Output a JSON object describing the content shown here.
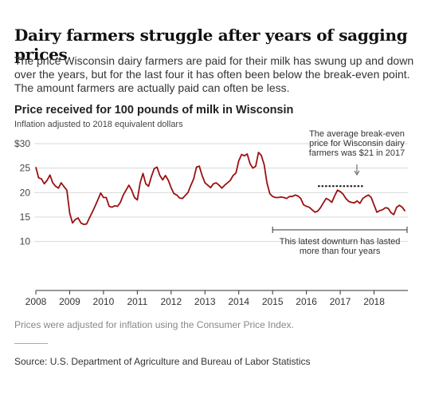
{
  "headline": "Dairy farmers struggle after years of sagging prices",
  "dek": "The price Wisconsin dairy farmers are paid for their milk has swung up and down over the years, but for the last four it has often been below the break-even point. The amount farmers are actually paid can often be less.",
  "note": "Prices were adjusted for inflation using the Consumer Price Index.",
  "source": "Source: U.S. Department of Agriculture and Bureau of Labor Statistics",
  "colors": {
    "line": "#9b1111",
    "grid": "#d8d8d8",
    "axis": "#333333",
    "annotation": "#333333"
  },
  "chart_data": {
    "type": "line",
    "title": "Price received for 100 pounds of milk in Wisconsin",
    "subtitle": "Inflation adjusted to 2018 equivalent dollars",
    "xlabel": "",
    "ylabel": "",
    "xlim": [
      2008,
      2019
    ],
    "ylim": [
      0,
      30
    ],
    "y_ticks": [
      0,
      10,
      15,
      20,
      25,
      30
    ],
    "y_tick_labels": [
      "",
      "10",
      "15",
      "20",
      "25",
      "$30"
    ],
    "x_ticks": [
      2008,
      2009,
      2010,
      2011,
      2012,
      2013,
      2014,
      2015,
      2016,
      2017,
      2018
    ],
    "x_tick_labels": [
      "2008",
      "2009",
      "2010",
      "2011",
      "2012",
      "2013",
      "2014",
      "2015",
      "2016",
      "2017",
      "2018"
    ],
    "grid": true,
    "series": [
      {
        "color": "#9b1111",
        "x": [
          2008.0,
          2008.083,
          2008.167,
          2008.25,
          2008.333,
          2008.417,
          2008.5,
          2008.583,
          2008.667,
          2008.75,
          2008.833,
          2008.917,
          2009.0,
          2009.083,
          2009.167,
          2009.25,
          2009.333,
          2009.417,
          2009.5,
          2009.583,
          2009.667,
          2009.75,
          2009.833,
          2009.917,
          2010.0,
          2010.083,
          2010.167,
          2010.25,
          2010.333,
          2010.417,
          2010.5,
          2010.583,
          2010.667,
          2010.75,
          2010.833,
          2010.917,
          2011.0,
          2011.083,
          2011.167,
          2011.25,
          2011.333,
          2011.417,
          2011.5,
          2011.583,
          2011.667,
          2011.75,
          2011.833,
          2011.917,
          2012.0,
          2012.083,
          2012.167,
          2012.25,
          2012.333,
          2012.417,
          2012.5,
          2012.583,
          2012.667,
          2012.75,
          2012.833,
          2012.917,
          2013.0,
          2013.083,
          2013.167,
          2013.25,
          2013.333,
          2013.417,
          2013.5,
          2013.583,
          2013.667,
          2013.75,
          2013.833,
          2013.917,
          2014.0,
          2014.083,
          2014.167,
          2014.25,
          2014.333,
          2014.417,
          2014.5,
          2014.583,
          2014.667,
          2014.75,
          2014.833,
          2014.917,
          2015.0,
          2015.083,
          2015.167,
          2015.25,
          2015.333,
          2015.417,
          2015.5,
          2015.583,
          2015.667,
          2015.75,
          2015.833,
          2015.917,
          2016.0,
          2016.083,
          2016.167,
          2016.25,
          2016.333,
          2016.417,
          2016.5,
          2016.583,
          2016.667,
          2016.75,
          2016.833,
          2016.917,
          2017.0,
          2017.083,
          2017.167,
          2017.25,
          2017.333,
          2017.417,
          2017.5,
          2017.583,
          2017.667,
          2017.75,
          2017.833,
          2017.917,
          2018.0,
          2018.083,
          2018.167,
          2018.25,
          2018.333,
          2018.417,
          2018.5,
          2018.583,
          2018.667,
          2018.75,
          2018.833,
          2018.917
        ],
        "y": [
          25.2,
          23.0,
          22.8,
          21.8,
          22.5,
          23.6,
          22.0,
          21.3,
          20.9,
          22.0,
          21.2,
          20.5,
          15.8,
          13.8,
          14.5,
          14.8,
          13.8,
          13.5,
          13.6,
          14.8,
          16.0,
          17.2,
          18.5,
          19.9,
          19.0,
          19.0,
          17.2,
          17.0,
          17.3,
          17.2,
          18.0,
          19.5,
          20.5,
          21.5,
          20.5,
          19.0,
          18.5,
          22.0,
          23.9,
          21.8,
          21.3,
          23.3,
          24.9,
          25.2,
          23.5,
          22.6,
          23.5,
          22.5,
          21.0,
          19.8,
          19.5,
          18.9,
          18.8,
          19.4,
          20.0,
          21.5,
          22.8,
          25.2,
          25.4,
          23.5,
          22.0,
          21.5,
          21.0,
          21.8,
          22.0,
          21.5,
          20.9,
          21.5,
          22.0,
          22.5,
          23.5,
          24.0,
          26.5,
          27.8,
          27.5,
          27.9,
          25.9,
          25.0,
          25.4,
          28.2,
          27.6,
          25.7,
          22.0,
          19.8,
          19.2,
          19.0,
          19.0,
          19.1,
          19.0,
          18.8,
          19.2,
          19.2,
          19.5,
          19.3,
          18.8,
          17.5,
          17.2,
          17.0,
          16.5,
          16.0,
          16.2,
          16.9,
          17.9,
          18.8,
          18.5,
          18.0,
          19.3,
          20.5,
          20.2,
          19.7,
          18.8,
          18.2,
          18.0,
          17.9,
          18.3,
          17.8,
          18.8,
          19.2,
          19.5,
          19.0,
          17.5,
          16.0,
          16.3,
          16.5,
          16.9,
          16.8,
          15.9,
          15.5,
          17.0,
          17.4,
          17.0,
          16.2
        ]
      }
    ],
    "annotations": {
      "breakeven_text": [
        "The average break-even",
        "price for Wisconsin dairy",
        "farmers was $21 in 2017"
      ],
      "breakeven_value": 21,
      "breakeven_range": [
        2017.0,
        2018.0
      ],
      "downturn_text": [
        "This latest downturn has lasted",
        "more than four years"
      ],
      "downturn_range": [
        2015.0,
        2019.0
      ]
    }
  }
}
